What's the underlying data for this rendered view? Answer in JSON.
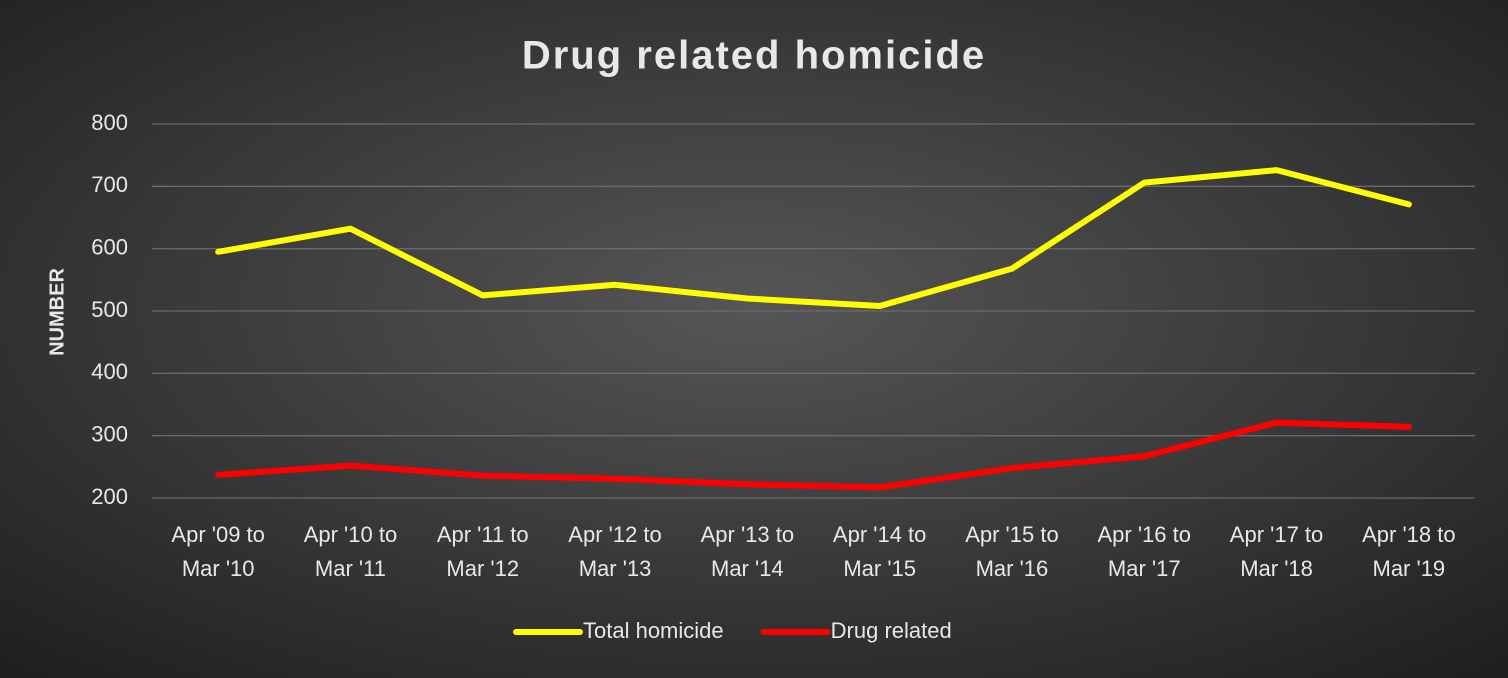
{
  "chart_data": {
    "type": "line",
    "title": "Drug related homicide",
    "y_label": "NUMBER",
    "categories": [
      "Apr '09 to\nMar '10",
      "Apr '10 to\nMar '11",
      "Apr '11 to\nMar '12",
      "Apr '12 to\nMar '13",
      "Apr '13 to\nMar '14",
      "Apr '14 to\nMar '15",
      "Apr '15 to\nMar '16",
      "Apr '16 to\nMar '17",
      "Apr '17 to\nMar '18",
      "Apr '18 to\nMar '19"
    ],
    "series": [
      {
        "name": "Total homicide",
        "color": "#ffff00",
        "values": [
          595,
          632,
          525,
          542,
          520,
          508,
          568,
          706,
          726,
          671
        ]
      },
      {
        "name": "Drug related",
        "color": "#ff0000",
        "values": [
          237,
          252,
          236,
          231,
          222,
          217,
          248,
          267,
          321,
          314
        ]
      }
    ],
    "ylim": [
      200,
      800
    ],
    "yticks": [
      200,
      300,
      400,
      500,
      600,
      700,
      800
    ],
    "grid": true,
    "legend": "bottom"
  }
}
